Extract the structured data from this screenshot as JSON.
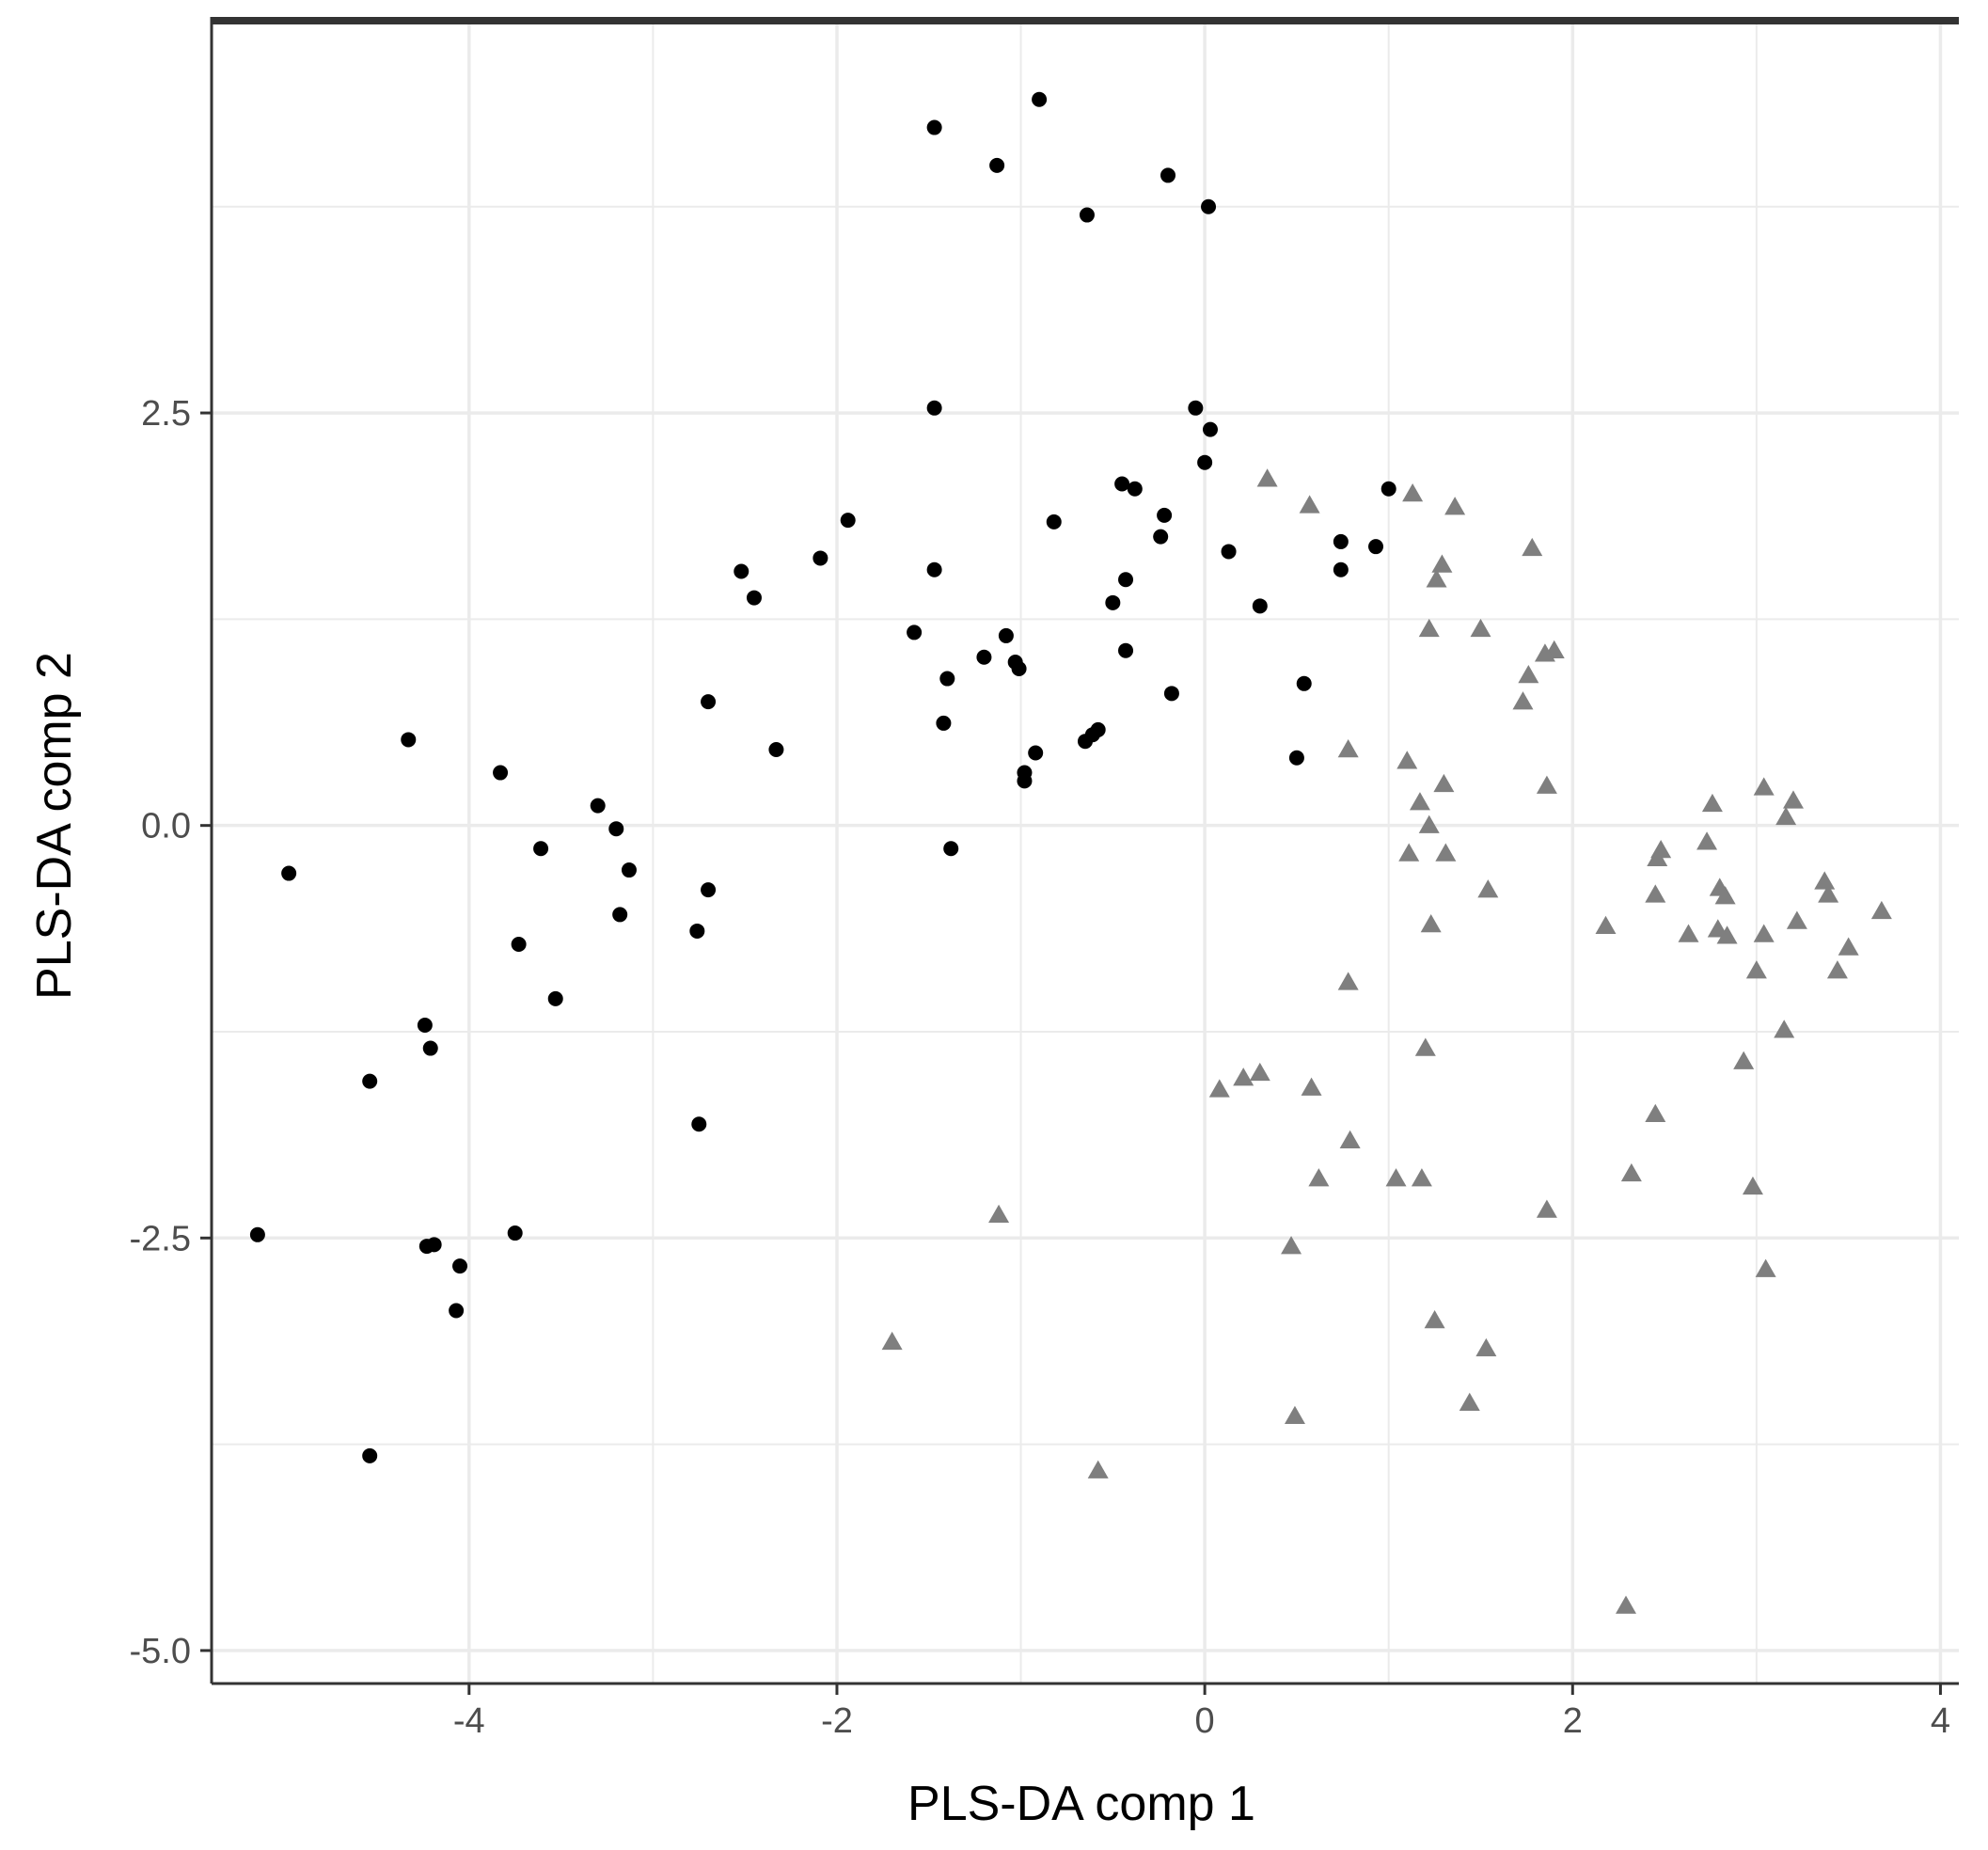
{
  "chart_data": {
    "type": "scatter",
    "title": "",
    "xlabel": "PLS-DA comp 1",
    "ylabel": "PLS-DA comp 2",
    "xlim": [
      -5.4,
      4.1
    ],
    "ylim": [
      -5.2,
      4.9
    ],
    "xticks": [
      -4,
      -2,
      0,
      2,
      4
    ],
    "xtick_labels": [
      "-4",
      "-2",
      "0",
      "2",
      "4"
    ],
    "yticks": [
      -5.0,
      -2.5,
      0.0,
      2.5
    ],
    "ytick_labels": [
      "-5.0",
      "-2.5",
      "0.0",
      "2.5"
    ],
    "grid": true,
    "legend": "none",
    "colors": {
      "group1": "#000000",
      "group2": "#7f7f7f",
      "grid": "#ebebeb",
      "axis": "#333333",
      "background": "#ffffff"
    },
    "series": [
      {
        "marker": "circle",
        "color": "#000000",
        "points": [
          [
            -0.9,
            4.4
          ],
          [
            -1.47,
            4.23
          ],
          [
            -1.13,
            4.0
          ],
          [
            -0.2,
            3.94
          ],
          [
            0.02,
            3.75
          ],
          [
            -0.64,
            3.7
          ],
          [
            -1.47,
            2.53
          ],
          [
            -0.05,
            2.53
          ],
          [
            0.03,
            2.4
          ],
          [
            0.0,
            2.2
          ],
          [
            -0.45,
            2.07
          ],
          [
            -0.38,
            2.04
          ],
          [
            1.0,
            2.04
          ],
          [
            -0.22,
            1.88
          ],
          [
            -0.82,
            1.84
          ],
          [
            -1.94,
            1.85
          ],
          [
            -0.24,
            1.75
          ],
          [
            0.74,
            1.72
          ],
          [
            0.93,
            1.69
          ],
          [
            -2.09,
            1.62
          ],
          [
            0.13,
            1.66
          ],
          [
            -1.47,
            1.55
          ],
          [
            -2.52,
            1.54
          ],
          [
            0.74,
            1.55
          ],
          [
            -0.43,
            1.49
          ],
          [
            -2.45,
            1.38
          ],
          [
            -0.5,
            1.35
          ],
          [
            0.3,
            1.33
          ],
          [
            -1.58,
            1.17
          ],
          [
            -1.08,
            1.15
          ],
          [
            -0.43,
            1.06
          ],
          [
            -1.2,
            1.02
          ],
          [
            -1.03,
            0.99
          ],
          [
            -1.01,
            0.95
          ],
          [
            -1.4,
            0.89
          ],
          [
            0.54,
            0.86
          ],
          [
            -0.18,
            0.8
          ],
          [
            -2.7,
            0.75
          ],
          [
            -1.42,
            0.62
          ],
          [
            -0.58,
            0.58
          ],
          [
            -0.61,
            0.55
          ],
          [
            -0.65,
            0.51
          ],
          [
            -4.33,
            0.52
          ],
          [
            -2.33,
            0.46
          ],
          [
            -0.92,
            0.44
          ],
          [
            0.5,
            0.41
          ],
          [
            -3.83,
            0.32
          ],
          [
            -0.98,
            0.32
          ],
          [
            -0.98,
            0.27
          ],
          [
            -3.3,
            0.12
          ],
          [
            -3.2,
            -0.02
          ],
          [
            -3.61,
            -0.14
          ],
          [
            -1.38,
            -0.14
          ],
          [
            -3.13,
            -0.27
          ],
          [
            -4.98,
            -0.29
          ],
          [
            -2.7,
            -0.39
          ],
          [
            -3.18,
            -0.54
          ],
          [
            -2.76,
            -0.64
          ],
          [
            -3.73,
            -0.72
          ],
          [
            -3.53,
            -1.05
          ],
          [
            -4.24,
            -1.21
          ],
          [
            -4.21,
            -1.35
          ],
          [
            -4.54,
            -1.55
          ],
          [
            -2.75,
            -1.81
          ],
          [
            -5.15,
            -2.48
          ],
          [
            -4.23,
            -2.55
          ],
          [
            -4.19,
            -2.54
          ],
          [
            -3.75,
            -2.47
          ],
          [
            -4.05,
            -2.67
          ],
          [
            -4.07,
            -2.94
          ],
          [
            -4.54,
            -3.82
          ]
        ]
      },
      {
        "marker": "triangle",
        "color": "#7f7f7f",
        "points": [
          [
            0.34,
            2.1
          ],
          [
            1.13,
            2.01
          ],
          [
            0.57,
            1.94
          ],
          [
            1.36,
            1.93
          ],
          [
            1.78,
            1.68
          ],
          [
            1.29,
            1.58
          ],
          [
            1.26,
            1.49
          ],
          [
            1.22,
            1.19
          ],
          [
            1.5,
            1.19
          ],
          [
            1.9,
            1.06
          ],
          [
            1.85,
            1.04
          ],
          [
            1.76,
            0.91
          ],
          [
            1.73,
            0.75
          ],
          [
            0.78,
            0.46
          ],
          [
            1.1,
            0.39
          ],
          [
            1.86,
            0.24
          ],
          [
            1.3,
            0.25
          ],
          [
            1.17,
            0.14
          ],
          [
            1.22,
            0.0
          ],
          [
            1.11,
            -0.17
          ],
          [
            1.31,
            -0.17
          ],
          [
            1.54,
            -0.39
          ],
          [
            1.23,
            -0.6
          ],
          [
            0.78,
            -0.95
          ],
          [
            1.2,
            -1.35
          ],
          [
            0.08,
            -1.6
          ],
          [
            0.21,
            -1.53
          ],
          [
            0.3,
            -1.5
          ],
          [
            0.58,
            -1.59
          ],
          [
            0.79,
            -1.91
          ],
          [
            0.62,
            -2.14
          ],
          [
            1.04,
            -2.14
          ],
          [
            1.18,
            -2.14
          ],
          [
            0.47,
            -2.55
          ],
          [
            1.86,
            -2.33
          ],
          [
            -1.12,
            -2.36
          ],
          [
            1.25,
            -3.0
          ],
          [
            1.53,
            -3.17
          ],
          [
            -1.7,
            -3.13
          ],
          [
            1.44,
            -3.5
          ],
          [
            0.49,
            -3.58
          ],
          [
            -0.58,
            -3.91
          ],
          [
            2.29,
            -4.73
          ],
          [
            2.18,
            -0.61
          ],
          [
            2.48,
            -0.15
          ],
          [
            2.46,
            -0.2
          ],
          [
            2.45,
            -0.42
          ],
          [
            2.63,
            -0.66
          ],
          [
            2.73,
            -0.1
          ],
          [
            2.76,
            0.13
          ],
          [
            2.8,
            -0.38
          ],
          [
            2.83,
            -0.43
          ],
          [
            2.79,
            -0.63
          ],
          [
            2.84,
            -0.67
          ],
          [
            3.04,
            0.23
          ],
          [
            3.2,
            0.15
          ],
          [
            3.16,
            0.05
          ],
          [
            3.04,
            -0.66
          ],
          [
            3.22,
            -0.58
          ],
          [
            3.37,
            -0.34
          ],
          [
            3.39,
            -0.42
          ],
          [
            3.5,
            -0.74
          ],
          [
            3.44,
            -0.88
          ],
          [
            3.68,
            -0.52
          ],
          [
            3.0,
            -0.88
          ],
          [
            3.15,
            -1.24
          ],
          [
            2.93,
            -1.43
          ],
          [
            2.45,
            -1.75
          ],
          [
            2.32,
            -2.11
          ],
          [
            2.98,
            -2.19
          ],
          [
            3.05,
            -2.69
          ]
        ]
      }
    ]
  }
}
